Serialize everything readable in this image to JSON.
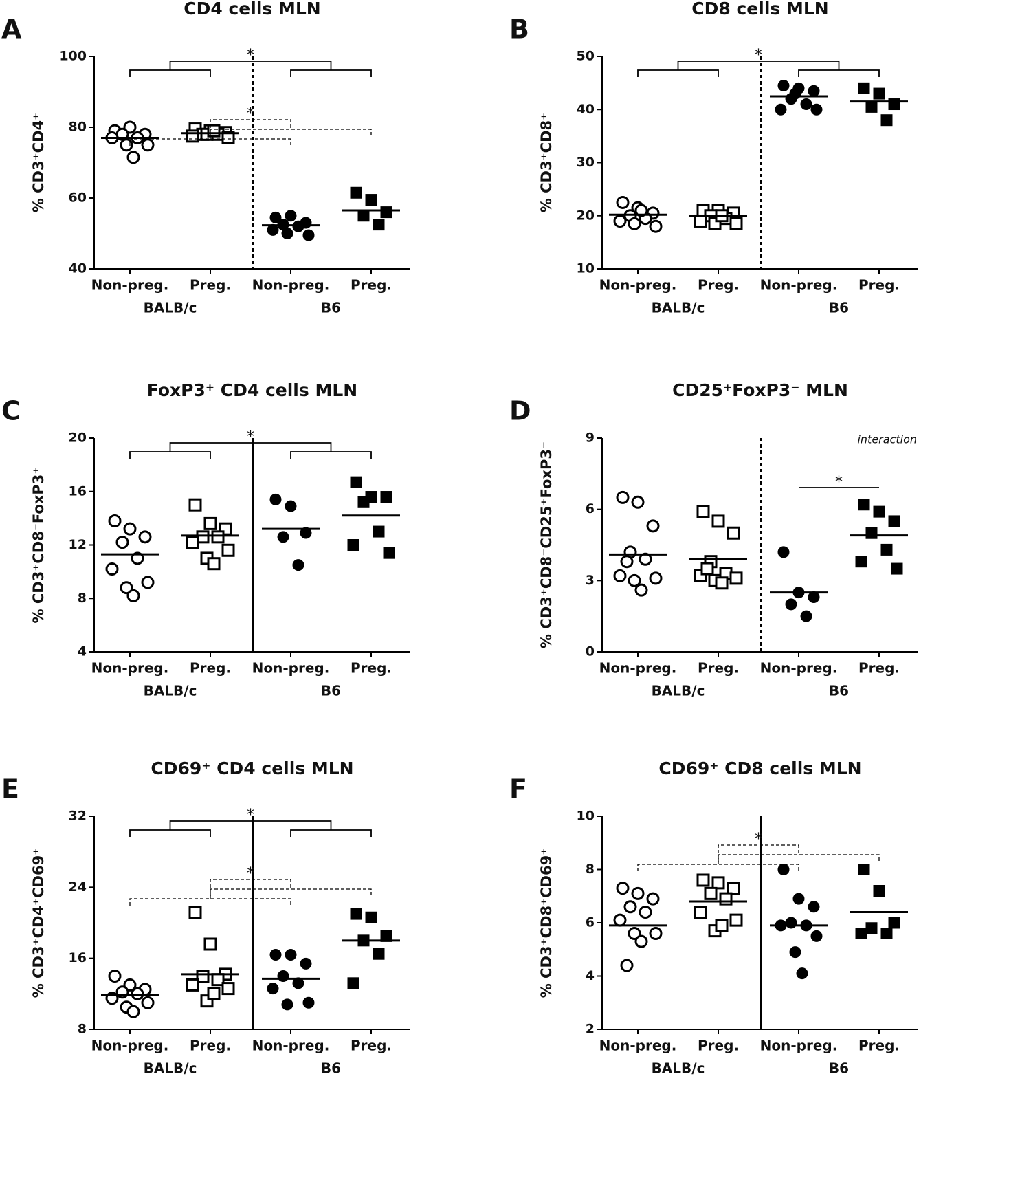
{
  "chart_data": [
    {
      "type": "dot",
      "panel": "A",
      "title": "CD4 cells MLN",
      "ylabel": "% CD3⁺CD4⁺",
      "ylim": [
        40,
        100
      ],
      "yticks": [
        40,
        60,
        80,
        100
      ],
      "categories": [
        "Non-preg.",
        "Preg.",
        "Non-preg.",
        "Preg."
      ],
      "group_labels": [
        "BALB/c",
        "B6"
      ],
      "markers": [
        "open-circle",
        "open-square",
        "filled-circle",
        "filled-square"
      ],
      "points": [
        [
          79,
          80,
          78,
          78,
          77,
          77,
          75,
          75,
          71.5
        ],
        [
          79.5,
          79,
          78.5,
          78,
          78,
          77.5,
          77,
          78,
          79
        ],
        [
          54.5,
          55,
          53,
          52.5,
          52,
          51,
          49.5,
          50
        ],
        [
          61.5,
          59.5,
          56,
          55,
          52.5
        ]
      ],
      "means": [
        77,
        78.3,
        52.3,
        56.5
      ],
      "divider": "dashed",
      "brackets": [
        {
          "style": "solid",
          "pairs": [
            [
              0,
              1
            ],
            [
              2,
              3
            ]
          ],
          "label": "*"
        },
        {
          "style": "dashed",
          "pairs": [
            [
              0,
              2
            ],
            [
              1,
              3
            ]
          ],
          "label": "*"
        }
      ]
    },
    {
      "type": "dot",
      "panel": "B",
      "title": "CD8 cells MLN",
      "ylabel": "% CD3⁺CD8⁺",
      "ylim": [
        10,
        50
      ],
      "yticks": [
        10,
        20,
        30,
        40,
        50
      ],
      "categories": [
        "Non-preg.",
        "Preg.",
        "Non-preg.",
        "Preg."
      ],
      "group_labels": [
        "BALB/c",
        "B6"
      ],
      "markers": [
        "open-circle",
        "open-square",
        "filled-circle",
        "filled-square"
      ],
      "points": [
        [
          22.5,
          21.5,
          20.5,
          20,
          19.5,
          19,
          18,
          18.5,
          21
        ],
        [
          21,
          21,
          20.5,
          20,
          19.5,
          19,
          18.5,
          18.5,
          20
        ],
        [
          44.5,
          44,
          43.5,
          42,
          41,
          40,
          40,
          43
        ],
        [
          44,
          43,
          41,
          40.5,
          38
        ]
      ],
      "means": [
        20.2,
        20,
        42.5,
        41.5
      ],
      "divider": "dashed",
      "brackets": [
        {
          "style": "solid",
          "pairs": [
            [
              0,
              1
            ],
            [
              2,
              3
            ]
          ],
          "label": "*"
        }
      ]
    },
    {
      "type": "dot",
      "panel": "C",
      "title": "FoxP3⁺ CD4 cells MLN",
      "ylabel": "% CD3⁺CD8⁻FoxP3⁺",
      "ylim": [
        4,
        20
      ],
      "yticks": [
        4,
        8,
        12,
        16,
        20
      ],
      "categories": [
        "Non-preg.",
        "Preg.",
        "Non-preg.",
        "Preg."
      ],
      "group_labels": [
        "BALB/c",
        "B6"
      ],
      "markers": [
        "open-circle",
        "open-square",
        "filled-circle",
        "filled-square"
      ],
      "points": [
        [
          13.8,
          13.2,
          12.6,
          12.2,
          11,
          10.2,
          9.2,
          8.8,
          8.2
        ],
        [
          15,
          13.6,
          13.2,
          12.6,
          12.6,
          12.2,
          11.6,
          11,
          10.6
        ],
        [
          15.4,
          14.9,
          12.9,
          12.6,
          10.5
        ],
        [
          16.7,
          15.6,
          15.6,
          15.2,
          13,
          12,
          11.4
        ]
      ],
      "means": [
        11.3,
        12.7,
        13.2,
        14.2
      ],
      "divider": "solid",
      "brackets": [
        {
          "style": "solid",
          "pairs": [
            [
              0,
              1
            ],
            [
              2,
              3
            ]
          ],
          "label": "*"
        }
      ]
    },
    {
      "type": "dot",
      "panel": "D",
      "title": "CD25⁺FoxP3⁻ MLN",
      "ylabel": "% CD3⁺CD8⁻CD25⁺FoxP3⁻",
      "ylim": [
        0,
        9
      ],
      "yticks": [
        0,
        3,
        6,
        9
      ],
      "categories": [
        "Non-preg.",
        "Preg.",
        "Non-preg.",
        "Preg."
      ],
      "group_labels": [
        "BALB/c",
        "B6"
      ],
      "markers": [
        "open-circle",
        "open-square",
        "filled-circle",
        "filled-square"
      ],
      "points": [
        [
          6.5,
          6.3,
          5.3,
          4.2,
          3.9,
          3.2,
          3.1,
          3,
          2.6,
          3.8
        ],
        [
          5.9,
          5.5,
          5,
          3.8,
          3.3,
          3.2,
          3.1,
          3,
          2.9,
          3.5
        ],
        [
          4.2,
          2.5,
          2.3,
          2,
          1.5
        ],
        [
          6.2,
          5.9,
          5.5,
          5,
          4.3,
          3.8,
          3.5
        ]
      ],
      "means": [
        4.1,
        3.9,
        2.5,
        4.9
      ],
      "divider": "dashed",
      "annotation": "interaction",
      "brackets": [
        {
          "style": "solid",
          "pairs": [
            [
              2,
              3
            ]
          ],
          "label": "*"
        }
      ]
    },
    {
      "type": "dot",
      "panel": "E",
      "title": "CD69⁺ CD4 cells MLN",
      "ylabel": "% CD3⁺CD4⁺CD69⁺",
      "ylim": [
        8,
        32
      ],
      "yticks": [
        8,
        16,
        24,
        32
      ],
      "categories": [
        "Non-preg.",
        "Preg.",
        "Non-preg.",
        "Preg."
      ],
      "group_labels": [
        "BALB/c",
        "B6"
      ],
      "markers": [
        "open-circle",
        "open-square",
        "filled-circle",
        "filled-square"
      ],
      "points": [
        [
          14,
          13,
          12.5,
          12.2,
          12,
          11.5,
          11,
          10.5,
          10
        ],
        [
          21.2,
          17.6,
          14.2,
          14,
          13.6,
          13,
          12.6,
          11.2,
          12
        ],
        [
          16.4,
          16.4,
          15.4,
          14,
          13.2,
          12.6,
          11,
          10.8
        ],
        [
          21,
          20.6,
          18.5,
          18,
          16.5,
          13.2
        ]
      ],
      "means": [
        11.9,
        14.2,
        13.7,
        18
      ],
      "divider": "solid",
      "brackets": [
        {
          "style": "solid",
          "pairs": [
            [
              0,
              1
            ],
            [
              2,
              3
            ]
          ],
          "label": "*"
        },
        {
          "style": "dashed",
          "pairs": [
            [
              0,
              2
            ],
            [
              1,
              3
            ]
          ],
          "label": "*"
        }
      ]
    },
    {
      "type": "dot",
      "panel": "F",
      "title": "CD69⁺ CD8 cells MLN",
      "ylabel": "% CD3⁺CD8⁺CD69⁺",
      "ylim": [
        2,
        10
      ],
      "yticks": [
        2,
        4,
        6,
        8,
        10
      ],
      "categories": [
        "Non-preg.",
        "Preg.",
        "Non-preg.",
        "Preg."
      ],
      "group_labels": [
        "BALB/c",
        "B6"
      ],
      "markers": [
        "open-circle",
        "open-square",
        "filled-circle",
        "filled-square"
      ],
      "points": [
        [
          7.3,
          7.1,
          6.9,
          6.6,
          6.4,
          6.1,
          5.6,
          5.6,
          5.3,
          4.4
        ],
        [
          7.6,
          7.5,
          7.3,
          7.1,
          6.9,
          6.4,
          6.1,
          5.7,
          5.9
        ],
        [
          8,
          6.9,
          6.6,
          6,
          5.9,
          5.9,
          5.5,
          4.9,
          4.1
        ],
        [
          8,
          7.2,
          6,
          5.8,
          5.6,
          5.6
        ]
      ],
      "means": [
        5.9,
        6.8,
        5.9,
        6.4
      ],
      "divider": "solid",
      "brackets": [
        {
          "style": "dashed",
          "pairs": [
            [
              0,
              2
            ],
            [
              1,
              3
            ]
          ],
          "label": "*"
        }
      ]
    }
  ]
}
